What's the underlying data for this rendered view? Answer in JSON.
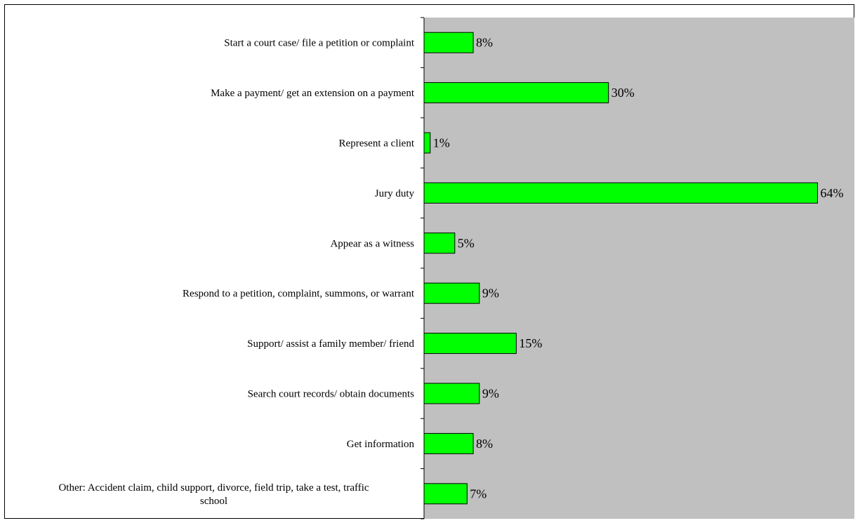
{
  "chart_data": {
    "type": "bar",
    "orientation": "horizontal",
    "categories": [
      [
        "Start a court case/ file a petition or complaint"
      ],
      [
        "Make a payment/ get an extension on a payment"
      ],
      [
        "Represent a client"
      ],
      [
        "Jury duty"
      ],
      [
        "Appear as a witness"
      ],
      [
        "Respond to a petition, complaint, summons, or warrant"
      ],
      [
        "Support/ assist a family member/ friend"
      ],
      [
        "Search court records/ obtain documents"
      ],
      [
        "Get information"
      ],
      [
        "Other: Accident claim, child support, divorce, field trip, take a test, traffic",
        "school"
      ]
    ],
    "values": [
      8,
      30,
      1,
      64,
      5,
      9,
      15,
      9,
      8,
      7
    ],
    "data_labels": [
      "8%",
      "30%",
      "1%",
      "64%",
      "5%",
      "9%",
      "15%",
      "9%",
      "8%",
      "7%"
    ],
    "xlim": [
      0,
      70
    ],
    "plot_background": "#c0c0c0",
    "bar_color": "#00ff00",
    "bar_border": "#000000",
    "gridlines": false,
    "legend": "none"
  }
}
